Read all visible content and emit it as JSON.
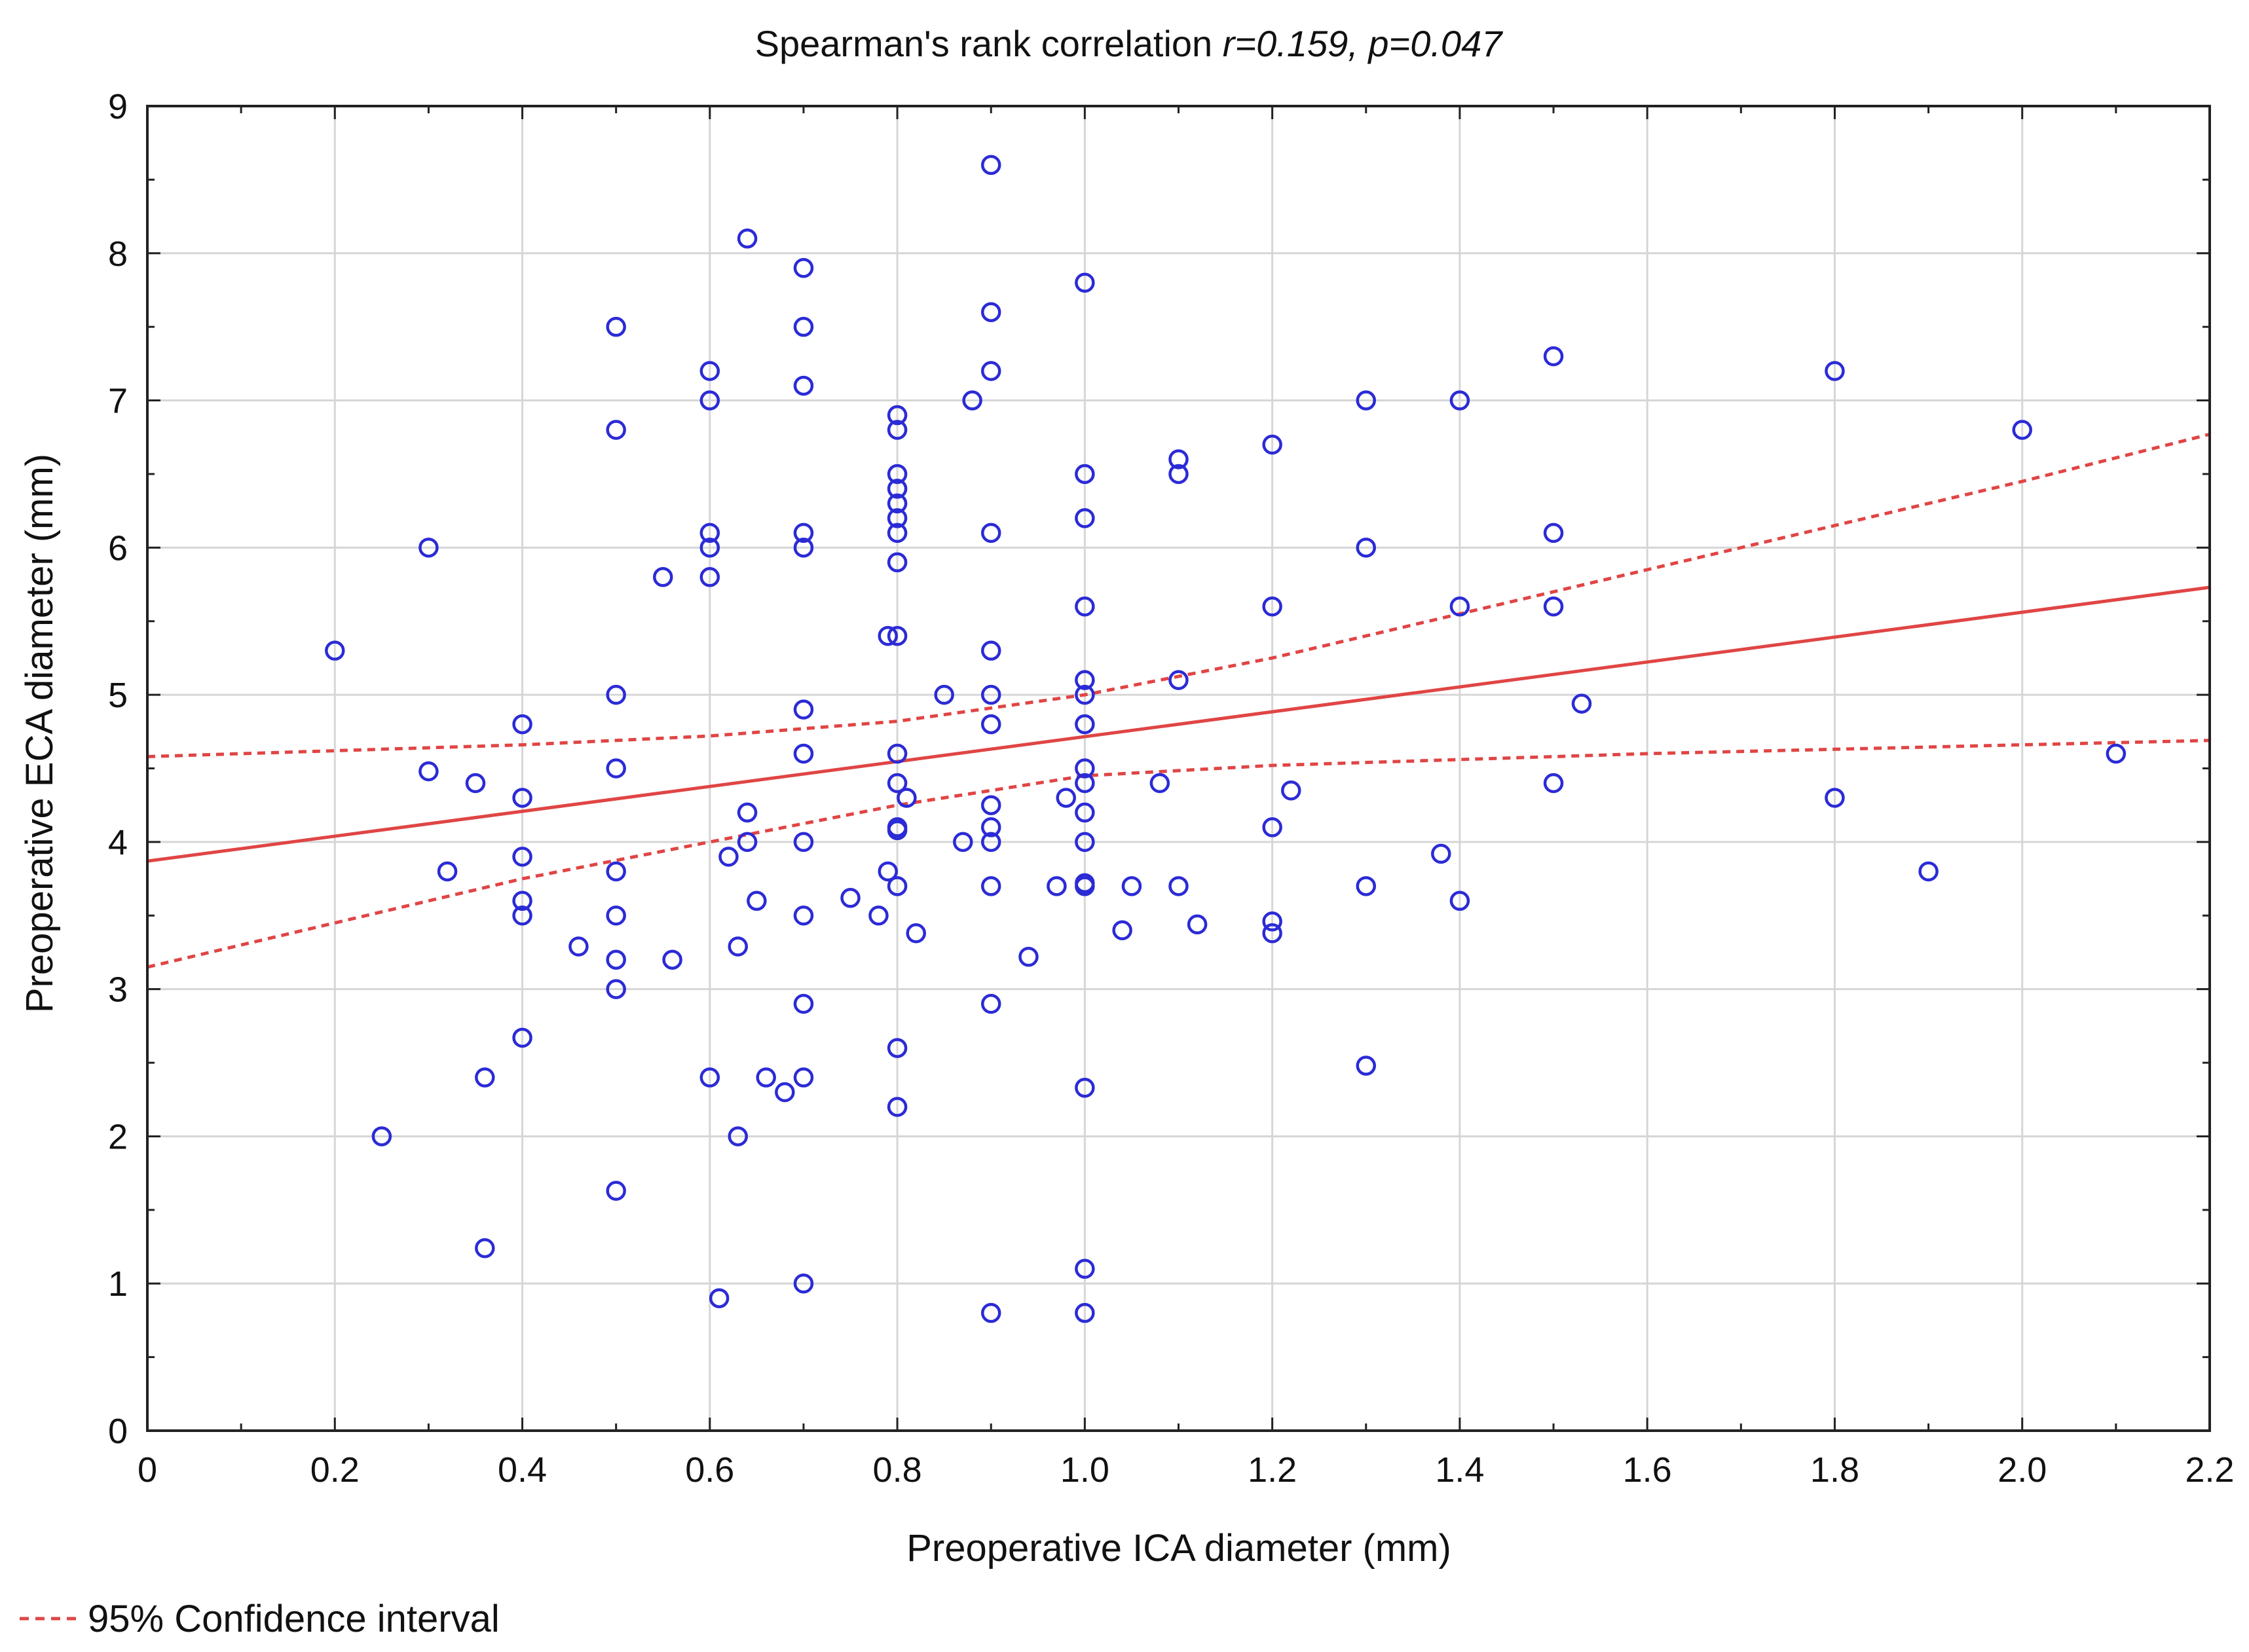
{
  "colors": {
    "points": "#2b2bd6",
    "fit": "#e04545",
    "ci": "#e04545"
  },
  "chart_data": {
    "type": "scatter",
    "title_prefix": "Spearman's rank correlation ",
    "title_stats": "r=0.159, p=0.047",
    "xlabel": "Preoperative ICA diameter (mm)",
    "ylabel": "Preoperative ECA diameter (mm)",
    "xlim": [
      0,
      2.2
    ],
    "ylim": [
      0,
      9
    ],
    "xticks": [
      0,
      0.2,
      0.4,
      0.6,
      0.8,
      1.0,
      1.2,
      1.4,
      1.6,
      1.8,
      2.0,
      2.2
    ],
    "xtick_labels": [
      "0",
      "0.2",
      "0.4",
      "0.6",
      "0.8",
      "1.0",
      "1.2",
      "1.4",
      "1.6",
      "1.8",
      "2.0",
      "2.2"
    ],
    "yticks": [
      0,
      1,
      2,
      3,
      4,
      5,
      6,
      7,
      8,
      9
    ],
    "ytick_labels": [
      "0",
      "1",
      "2",
      "3",
      "4",
      "5",
      "6",
      "7",
      "8",
      "9"
    ],
    "grid": true,
    "legend": {
      "label": "95% Confidence interval",
      "placement": "bottom-left"
    },
    "fit_line": {
      "x": [
        0,
        2.2
      ],
      "y": [
        3.87,
        5.73
      ]
    },
    "ci_upper": {
      "x": [
        0,
        0.2,
        0.4,
        0.6,
        0.8,
        1.0,
        1.2,
        1.4,
        1.6,
        1.8,
        2.0,
        2.2
      ],
      "y": [
        4.58,
        4.62,
        4.66,
        4.72,
        4.82,
        5.0,
        5.25,
        5.55,
        5.85,
        6.15,
        6.45,
        6.77
      ]
    },
    "ci_lower": {
      "x": [
        0,
        0.2,
        0.4,
        0.6,
        0.8,
        1.0,
        1.2,
        1.4,
        1.6,
        1.8,
        2.0,
        2.2
      ],
      "y": [
        3.15,
        3.45,
        3.75,
        4.0,
        4.25,
        4.45,
        4.52,
        4.56,
        4.6,
        4.63,
        4.66,
        4.69
      ]
    },
    "points": [
      [
        0.2,
        5.3
      ],
      [
        0.25,
        2.0
      ],
      [
        0.3,
        6.0
      ],
      [
        0.3,
        4.48
      ],
      [
        0.32,
        3.8
      ],
      [
        0.35,
        4.4
      ],
      [
        0.36,
        2.4
      ],
      [
        0.36,
        1.24
      ],
      [
        0.4,
        4.8
      ],
      [
        0.4,
        4.3
      ],
      [
        0.4,
        3.9
      ],
      [
        0.4,
        3.6
      ],
      [
        0.4,
        3.5
      ],
      [
        0.4,
        2.67
      ],
      [
        0.46,
        3.29
      ],
      [
        0.5,
        7.5
      ],
      [
        0.5,
        6.8
      ],
      [
        0.5,
        5.0
      ],
      [
        0.5,
        4.5
      ],
      [
        0.5,
        3.8
      ],
      [
        0.5,
        3.5
      ],
      [
        0.5,
        3.2
      ],
      [
        0.5,
        3.0
      ],
      [
        0.5,
        1.63
      ],
      [
        0.55,
        5.8
      ],
      [
        0.56,
        3.2
      ],
      [
        0.6,
        7.2
      ],
      [
        0.6,
        7.0
      ],
      [
        0.6,
        6.1
      ],
      [
        0.6,
        6.0
      ],
      [
        0.6,
        5.8
      ],
      [
        0.6,
        2.4
      ],
      [
        0.61,
        0.9
      ],
      [
        0.62,
        3.9
      ],
      [
        0.63,
        3.29
      ],
      [
        0.63,
        2.0
      ],
      [
        0.64,
        8.1
      ],
      [
        0.64,
        4.2
      ],
      [
        0.64,
        4.0
      ],
      [
        0.65,
        3.6
      ],
      [
        0.66,
        2.4
      ],
      [
        0.68,
        2.3
      ],
      [
        0.7,
        7.9
      ],
      [
        0.7,
        7.5
      ],
      [
        0.7,
        7.1
      ],
      [
        0.7,
        6.1
      ],
      [
        0.7,
        6.0
      ],
      [
        0.7,
        4.9
      ],
      [
        0.7,
        4.6
      ],
      [
        0.7,
        4.0
      ],
      [
        0.7,
        3.5
      ],
      [
        0.7,
        2.9
      ],
      [
        0.7,
        2.4
      ],
      [
        0.7,
        1.0
      ],
      [
        0.75,
        3.62
      ],
      [
        0.78,
        3.5
      ],
      [
        0.79,
        5.4
      ],
      [
        0.79,
        3.8
      ],
      [
        0.8,
        6.9
      ],
      [
        0.8,
        6.8
      ],
      [
        0.8,
        6.5
      ],
      [
        0.8,
        6.4
      ],
      [
        0.8,
        6.3
      ],
      [
        0.8,
        6.2
      ],
      [
        0.8,
        6.1
      ],
      [
        0.8,
        5.9
      ],
      [
        0.8,
        5.4
      ],
      [
        0.8,
        4.6
      ],
      [
        0.8,
        4.4
      ],
      [
        0.8,
        4.1
      ],
      [
        0.8,
        4.08
      ],
      [
        0.8,
        3.7
      ],
      [
        0.8,
        2.6
      ],
      [
        0.8,
        2.2
      ],
      [
        0.81,
        4.3
      ],
      [
        0.82,
        3.38
      ],
      [
        0.85,
        5.0
      ],
      [
        0.87,
        4.0
      ],
      [
        0.88,
        7.0
      ],
      [
        0.9,
        8.6
      ],
      [
        0.9,
        7.6
      ],
      [
        0.9,
        7.2
      ],
      [
        0.9,
        6.1
      ],
      [
        0.9,
        5.3
      ],
      [
        0.9,
        5.0
      ],
      [
        0.9,
        4.8
      ],
      [
        0.9,
        4.25
      ],
      [
        0.9,
        4.1
      ],
      [
        0.9,
        4.0
      ],
      [
        0.9,
        3.7
      ],
      [
        0.9,
        2.9
      ],
      [
        0.9,
        0.8
      ],
      [
        0.94,
        3.22
      ],
      [
        0.97,
        3.7
      ],
      [
        0.98,
        4.3
      ],
      [
        1.0,
        7.8
      ],
      [
        1.0,
        6.5
      ],
      [
        1.0,
        6.2
      ],
      [
        1.0,
        5.6
      ],
      [
        1.0,
        5.1
      ],
      [
        1.0,
        5.0
      ],
      [
        1.0,
        4.8
      ],
      [
        1.0,
        4.5
      ],
      [
        1.0,
        4.4
      ],
      [
        1.0,
        4.2
      ],
      [
        1.0,
        4.0
      ],
      [
        1.0,
        3.72
      ],
      [
        1.0,
        3.7
      ],
      [
        1.0,
        2.33
      ],
      [
        1.0,
        1.1
      ],
      [
        1.0,
        0.8
      ],
      [
        1.04,
        3.4
      ],
      [
        1.05,
        3.7
      ],
      [
        1.08,
        4.4
      ],
      [
        1.1,
        6.6
      ],
      [
        1.1,
        6.5
      ],
      [
        1.1,
        5.1
      ],
      [
        1.1,
        3.7
      ],
      [
        1.12,
        3.44
      ],
      [
        1.2,
        6.7
      ],
      [
        1.2,
        5.6
      ],
      [
        1.2,
        4.1
      ],
      [
        1.2,
        3.46
      ],
      [
        1.2,
        3.38
      ],
      [
        1.22,
        4.35
      ],
      [
        1.3,
        7.0
      ],
      [
        1.3,
        6.0
      ],
      [
        1.3,
        3.7
      ],
      [
        1.3,
        2.48
      ],
      [
        1.38,
        3.92
      ],
      [
        1.4,
        7.0
      ],
      [
        1.4,
        5.6
      ],
      [
        1.4,
        3.6
      ],
      [
        1.5,
        7.3
      ],
      [
        1.5,
        6.1
      ],
      [
        1.5,
        5.6
      ],
      [
        1.5,
        4.4
      ],
      [
        1.53,
        4.94
      ],
      [
        1.8,
        7.2
      ],
      [
        1.8,
        4.3
      ],
      [
        1.9,
        3.8
      ],
      [
        2.0,
        6.8
      ],
      [
        2.1,
        4.6
      ]
    ]
  }
}
